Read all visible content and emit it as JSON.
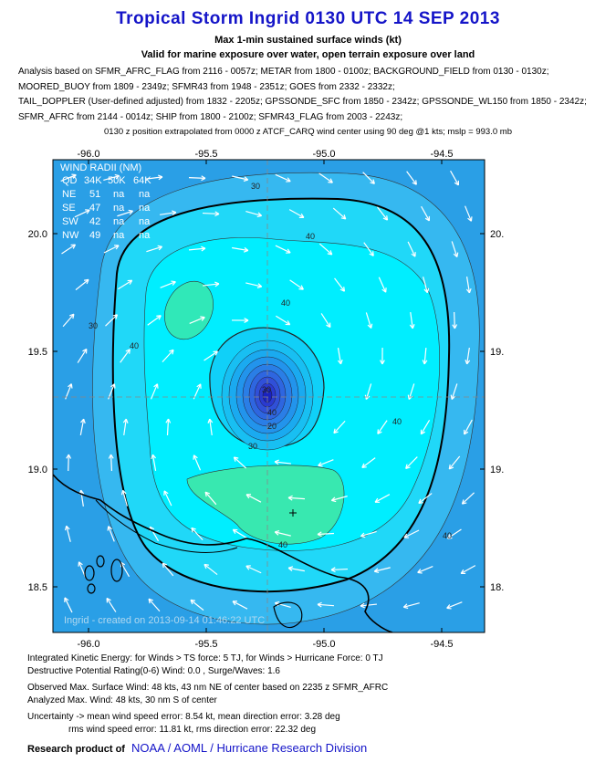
{
  "header": {
    "title": "Tropical Storm Ingrid 0130 UTC 14 SEP 2013",
    "subtitle": "Max 1-min sustained surface winds (kt)",
    "valid": "Valid for marine exposure over water, open terrain exposure over land",
    "analysis_lines": [
      "Analysis based on SFMR_AFRC_FLAG from 2116 - 0057z; METAR from 1800 - 0100z; BACKGROUND_FIELD from 0130 - 0130z;",
      "MOORED_BUOY from 1809 - 2349z; SFMR43 from 1948 - 2351z; GOES from 2332 - 2332z;",
      "TAIL_DOPPLER (User-defined adjusted) from 1832 - 2205z; GPSSONDE_SFC from 1850 - 2342z; GPSSONDE_WL150 from 1850 - 2342z;",
      "SFMR_AFRC from 2144 - 0014z; SHIP from 1800 - 2100z; SFMR43_FLAG from 2003 - 2243z;"
    ],
    "position_note": "0130 z position extrapolated from 0000 z ATCF_CARQ wind center using 90 deg @1 kts; mslp = 993.0 mb"
  },
  "map": {
    "top_ticks": [
      "-96.0",
      "-95.5",
      "-95.0",
      "-94.5"
    ],
    "bottom_ticks": [
      "-96.0",
      "-95.5",
      "-95.0",
      "-94.5"
    ],
    "left_ticks": [
      "20.0",
      "19.5",
      "19.0",
      "18.5"
    ],
    "right_ticks": [
      "20.",
      "19.",
      "19.",
      "18."
    ],
    "wind_radii": {
      "title": "WIND RADII (NM)",
      "header": [
        "QD",
        "34K",
        "50K",
        "64K"
      ],
      "rows": [
        [
          "NE",
          "51",
          "na",
          "na"
        ],
        [
          "SE",
          "47",
          "na",
          "na"
        ],
        [
          "SW",
          "42",
          "na",
          "na"
        ],
        [
          "NW",
          "49",
          "na",
          "na"
        ]
      ]
    },
    "contour_labels": [
      "30",
      "40",
      "40",
      "30",
      "40",
      "40",
      "30",
      "40",
      "40",
      "30",
      "20",
      "40"
    ],
    "watermark": "Ingrid - created on 2013-09-14 01:46:22 UTC"
  },
  "footer": {
    "lines": [
      "Integrated Kinetic Energy: for Winds > TS force: 5 TJ, for Winds > Hurricane Force: 0 TJ",
      "Destructive Potential Rating(0-6)   Wind: 0.0 , Surge/Waves: 1.6",
      "Observed Max. Surface Wind: 48 kts, 43 nm NE of center based on 2235 z SFMR_AFRC",
      "Analyzed Max. Wind: 48 kts, 30 nm  S of center",
      "Uncertainty -> mean wind speed error: 8.54 kt, mean direction error: 3.28 deg",
      "rms wind speed error: 11.81 kt, rms direction error: 22.32 deg"
    ],
    "credit_prefix": "Research product of",
    "credit_link": "NOAA  /  AOML  /  Hurricane Research Division"
  }
}
